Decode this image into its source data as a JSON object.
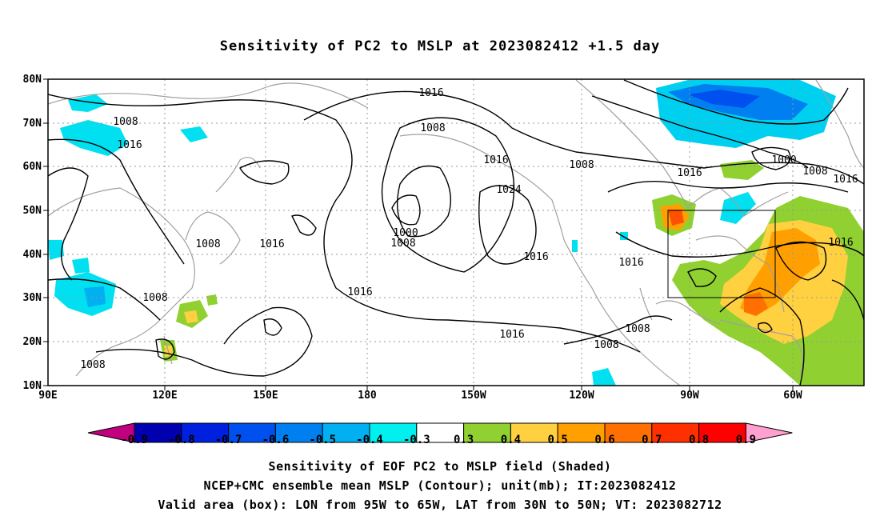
{
  "title": "Sensitivity of PC2 to MSLP at 2023082412 +1.5 day",
  "lat_labels": [
    "80N",
    "70N",
    "60N",
    "50N",
    "40N",
    "30N",
    "20N",
    "10N"
  ],
  "lon_labels": [
    "90E",
    "120E",
    "150E",
    "180",
    "150W",
    "120W",
    "90W",
    "60W"
  ],
  "contour_labels": [
    "1016",
    "1008",
    "1016",
    "1008",
    "1016",
    "1016",
    "1008",
    "1024",
    "1000",
    "1008",
    "1008",
    "1016",
    "1016",
    "1016",
    "1000",
    "1008",
    "1016",
    "1016",
    "1016",
    "1008",
    "1008",
    "1008",
    "1008"
  ],
  "colorbar": {
    "labels": [
      "-0.9",
      "-0.8",
      "-0.7",
      "-0.6",
      "-0.5",
      "-0.4",
      "-0.3",
      "0.3",
      "0.4",
      "0.5",
      "0.6",
      "0.7",
      "0.8",
      "0.9"
    ],
    "colors": [
      "#c0007f",
      "#0000b0",
      "#0020e0",
      "#0050f0",
      "#0080f0",
      "#00b0f0",
      "#00f0f0",
      "#ffffff",
      "#90d030",
      "#ffd040",
      "#ffa000",
      "#ff7000",
      "#ff3000",
      "#ff0000",
      "#ffa0d0"
    ]
  },
  "captions": [
    "Sensitivity of EOF PC2 to MSLP field (Shaded)",
    "NCEP+CMC ensemble mean MSLP (Contour); unit(mb); IT:2023082412",
    "Valid area (box): LON from 95W to 65W, LAT from 30N to 50N; VT: 2023082712"
  ]
}
